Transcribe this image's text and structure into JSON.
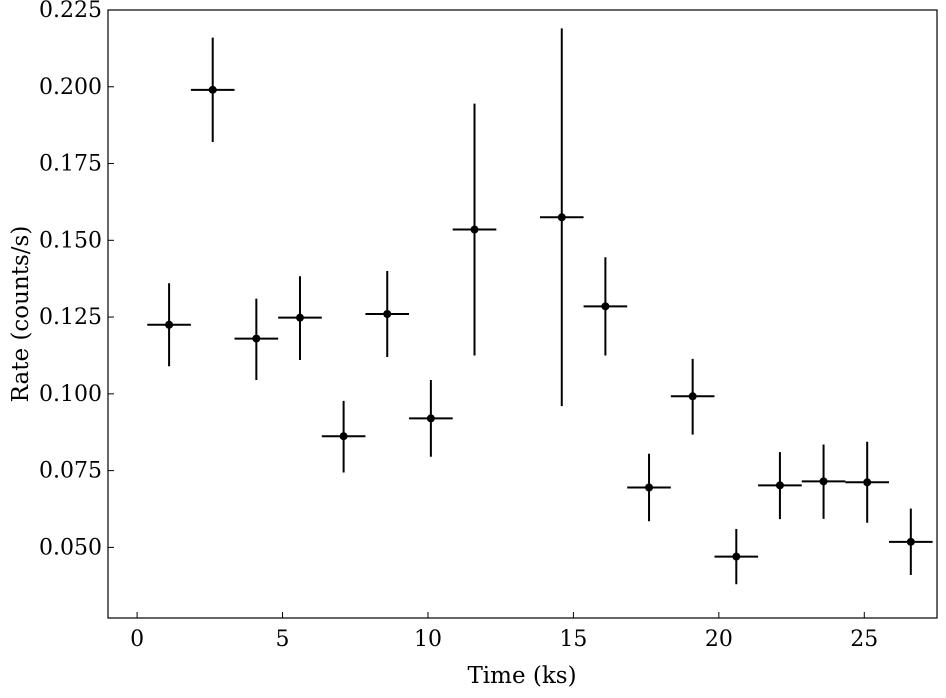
{
  "chart_data": {
    "type": "scatter",
    "title": "",
    "xlabel": "Time (ks)",
    "ylabel": "Rate (counts/s)",
    "xlim": [
      -1,
      27.5
    ],
    "ylim": [
      0.027,
      0.225
    ],
    "x_ticks": [
      0,
      5,
      10,
      15,
      20,
      25
    ],
    "x_tick_labels": [
      "0",
      "5",
      "10",
      "15",
      "20",
      "25"
    ],
    "y_ticks": [
      0.05,
      0.075,
      0.1,
      0.125,
      0.15,
      0.175,
      0.2,
      0.225
    ],
    "y_tick_labels": [
      "0.050",
      "0.075",
      "0.100",
      "0.125",
      "0.150",
      "0.175",
      "0.200",
      "0.225"
    ],
    "grid": false,
    "marker_color": "#000000",
    "series": [
      {
        "points": [
          {
            "x": 1.1,
            "y": 0.1225,
            "xerr": 0.75,
            "yerr_low": 0.0135,
            "yerr_high": 0.0135
          },
          {
            "x": 2.6,
            "y": 0.199,
            "xerr": 0.75,
            "yerr_low": 0.017,
            "yerr_high": 0.017
          },
          {
            "x": 4.1,
            "y": 0.118,
            "xerr": 0.75,
            "yerr_low": 0.0135,
            "yerr_high": 0.013
          },
          {
            "x": 5.6,
            "y": 0.1248,
            "xerr": 0.75,
            "yerr_low": 0.0138,
            "yerr_high": 0.0135
          },
          {
            "x": 7.1,
            "y": 0.0862,
            "xerr": 0.75,
            "yerr_low": 0.0118,
            "yerr_high": 0.0115
          },
          {
            "x": 8.6,
            "y": 0.126,
            "xerr": 0.75,
            "yerr_low": 0.014,
            "yerr_high": 0.014
          },
          {
            "x": 10.1,
            "y": 0.092,
            "xerr": 0.75,
            "yerr_low": 0.0125,
            "yerr_high": 0.0125
          },
          {
            "x": 11.6,
            "y": 0.1535,
            "xerr": 0.75,
            "yerr_low": 0.041,
            "yerr_high": 0.041
          },
          {
            "x": 14.6,
            "y": 0.1575,
            "xerr": 0.75,
            "yerr_low": 0.0615,
            "yerr_high": 0.0615
          },
          {
            "x": 16.1,
            "y": 0.1285,
            "xerr": 0.75,
            "yerr_low": 0.016,
            "yerr_high": 0.016
          },
          {
            "x": 17.6,
            "y": 0.0695,
            "xerr": 0.75,
            "yerr_low": 0.011,
            "yerr_high": 0.011
          },
          {
            "x": 19.1,
            "y": 0.0992,
            "xerr": 0.75,
            "yerr_low": 0.0125,
            "yerr_high": 0.0122
          },
          {
            "x": 20.6,
            "y": 0.047,
            "xerr": 0.75,
            "yerr_low": 0.009,
            "yerr_high": 0.009
          },
          {
            "x": 22.1,
            "y": 0.0702,
            "xerr": 0.75,
            "yerr_low": 0.011,
            "yerr_high": 0.0108
          },
          {
            "x": 23.6,
            "y": 0.0715,
            "xerr": 0.75,
            "yerr_low": 0.0122,
            "yerr_high": 0.012
          },
          {
            "x": 25.1,
            "y": 0.0712,
            "xerr": 0.75,
            "yerr_low": 0.0132,
            "yerr_high": 0.0132
          },
          {
            "x": 26.6,
            "y": 0.0518,
            "xerr": 0.75,
            "yerr_low": 0.0108,
            "yerr_high": 0.0108
          }
        ]
      }
    ]
  }
}
